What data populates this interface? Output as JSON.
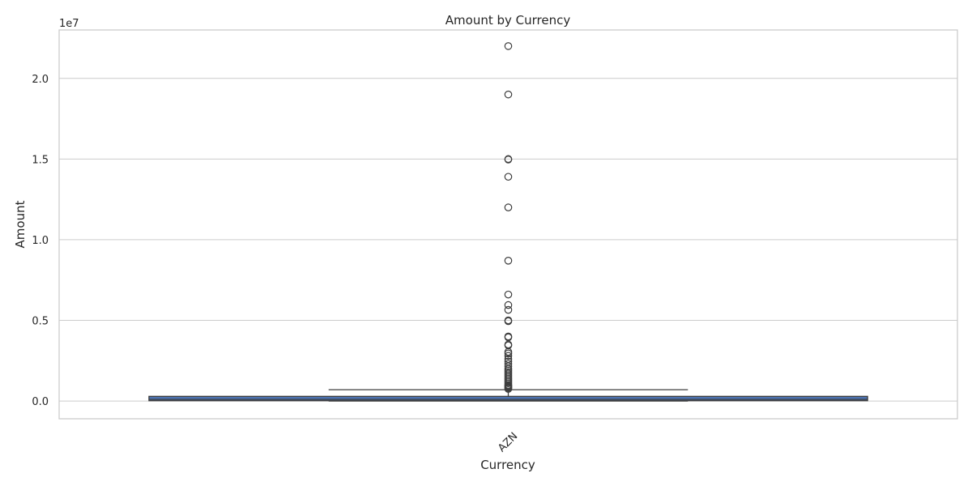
{
  "chart_data": {
    "type": "box",
    "title": "Amount by Currency",
    "xlabel": "Currency",
    "ylabel": "Amount",
    "y_offset_label": "1e7",
    "y_scale_factor": 10000000,
    "categories": [
      "AZN"
    ],
    "ylim": [
      -1100000,
      23000000
    ],
    "yticks": [
      0,
      5000000,
      10000000,
      15000000,
      20000000
    ],
    "ytick_labels": [
      "0.0",
      "0.5",
      "1.0",
      "1.5",
      "2.0"
    ],
    "grid": true,
    "box_color": "#4c72b0",
    "box": {
      "min": 0,
      "q1": 20000,
      "median": 100000,
      "q3": 290000,
      "whisker_high": 700000
    },
    "outliers": [
      22000000,
      19000000,
      15000000,
      14970000,
      13900000,
      12000000,
      8700000,
      6600000,
      5950000,
      5650000,
      5000000,
      4950000,
      4000000,
      3950000,
      3500000,
      3450000,
      3050000,
      2950000,
      2800000,
      2600000,
      2450000,
      2300000,
      2150000,
      2000000,
      1900000,
      1800000,
      1700000,
      1600000,
      1500000,
      1400000,
      1300000,
      1200000,
      1100000,
      1000000,
      950000,
      900000,
      850000,
      800000,
      750000
    ]
  }
}
